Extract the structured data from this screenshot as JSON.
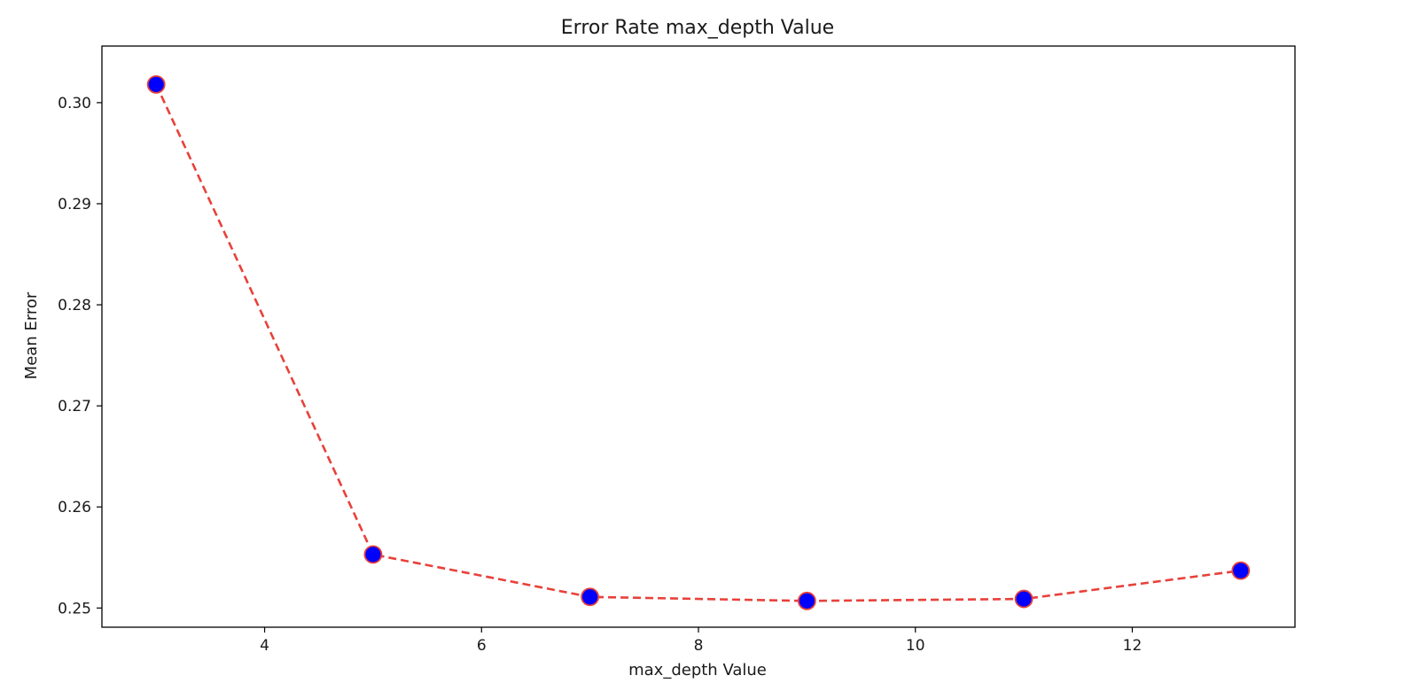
{
  "chart_data": {
    "type": "line",
    "title": "Error Rate max_depth Value",
    "xlabel": "max_depth Value",
    "ylabel": "Mean Error",
    "xlim": [
      2.5,
      13.5
    ],
    "ylim": [
      0.2481,
      0.3056
    ],
    "x_ticks": [
      4,
      6,
      8,
      10,
      12
    ],
    "y_ticks": [
      0.25,
      0.26,
      0.27,
      0.28,
      0.29,
      0.3
    ],
    "x_tick_labels": [
      "4",
      "6",
      "8",
      "10",
      "12"
    ],
    "y_tick_labels": [
      "0.25",
      "0.26",
      "0.27",
      "0.28",
      "0.29",
      "0.30"
    ],
    "grid": false,
    "legend": false,
    "series": [
      {
        "x": [
          3,
          5,
          7,
          9,
          11,
          13
        ],
        "y": [
          0.3018,
          0.2553,
          0.2511,
          0.2507,
          0.2509,
          0.2537
        ],
        "line_color": "#e8413a",
        "line_style": "dashed",
        "marker": "circle",
        "marker_face_color": "#0000ff",
        "marker_edge_color": "#e8413a"
      }
    ]
  }
}
